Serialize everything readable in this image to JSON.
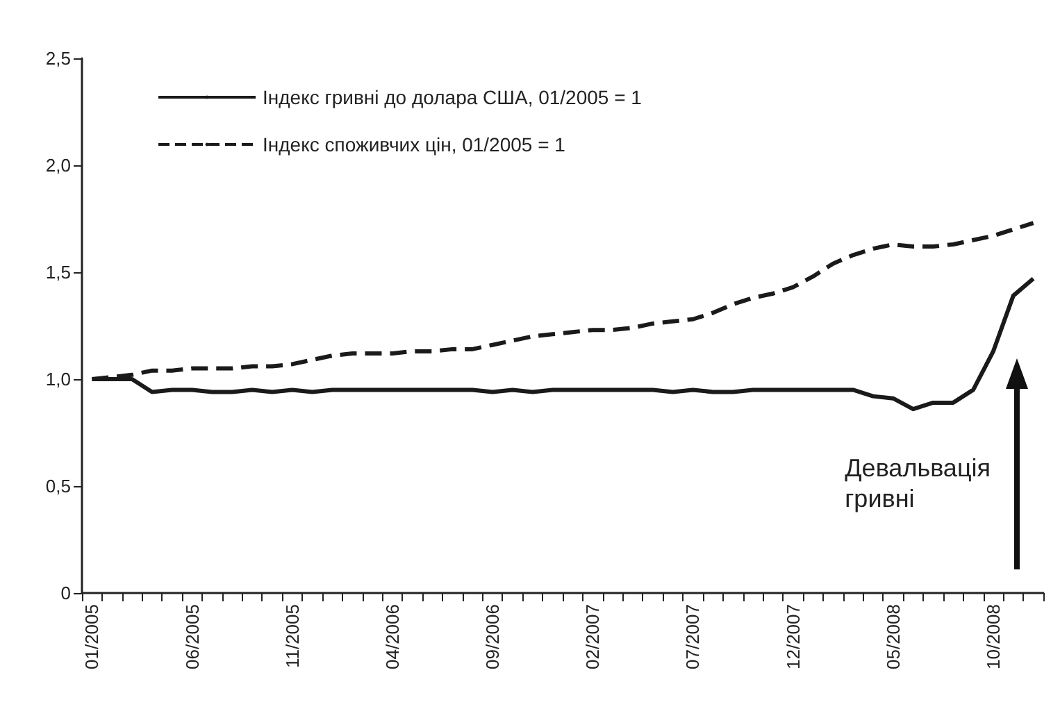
{
  "chart_data": {
    "type": "line",
    "categories": [
      "01/2005",
      null,
      null,
      null,
      null,
      "06/2005",
      null,
      null,
      null,
      null,
      "11/2005",
      null,
      null,
      null,
      null,
      "04/2006",
      null,
      null,
      null,
      null,
      "09/2006",
      null,
      null,
      null,
      null,
      "02/2007",
      null,
      null,
      null,
      null,
      "07/2007",
      null,
      null,
      null,
      null,
      "12/2007",
      null,
      null,
      null,
      null,
      "05/2008",
      null,
      null,
      null,
      null,
      "10/2008",
      null,
      null
    ],
    "series": [
      {
        "name": "Індекс гривні до долара США, 01/2005 = 1",
        "color": "#1a1a1a",
        "line_style": "solid",
        "values": [
          1.0,
          1.0,
          1.0,
          0.94,
          0.95,
          0.95,
          0.94,
          0.94,
          0.95,
          0.94,
          0.95,
          0.94,
          0.95,
          0.95,
          0.95,
          0.95,
          0.95,
          0.95,
          0.95,
          0.95,
          0.94,
          0.95,
          0.94,
          0.95,
          0.95,
          0.95,
          0.95,
          0.95,
          0.95,
          0.94,
          0.95,
          0.94,
          0.94,
          0.95,
          0.95,
          0.95,
          0.95,
          0.95,
          0.95,
          0.92,
          0.91,
          0.86,
          0.89,
          0.89,
          0.95,
          1.13,
          1.39,
          1.47
        ]
      },
      {
        "name": "Індекс споживчих цін, 01/2005 = 1",
        "color": "#1a1a1a",
        "line_style": "dashed",
        "values": [
          1.0,
          1.01,
          1.02,
          1.04,
          1.04,
          1.05,
          1.05,
          1.05,
          1.06,
          1.06,
          1.07,
          1.09,
          1.11,
          1.12,
          1.12,
          1.12,
          1.13,
          1.13,
          1.14,
          1.14,
          1.16,
          1.18,
          1.2,
          1.21,
          1.22,
          1.23,
          1.23,
          1.24,
          1.26,
          1.27,
          1.28,
          1.31,
          1.35,
          1.38,
          1.4,
          1.43,
          1.48,
          1.54,
          1.58,
          1.61,
          1.63,
          1.62,
          1.62,
          1.63,
          1.65,
          1.67,
          1.7,
          1.73
        ]
      }
    ],
    "ylim": [
      0,
      2.5
    ],
    "yticks": [
      0,
      {
        "value": 0.5,
        "label": "0,5"
      },
      {
        "value": 1,
        "label": "1,0"
      },
      {
        "value": 1.5,
        "label": "1,5"
      },
      {
        "value": 2,
        "label": "2,0"
      },
      {
        "value": 2.5,
        "label": "2,5"
      }
    ],
    "grid": false,
    "legend": "top left",
    "marker": "none",
    "annotations": [
      "Девальвація\nгривні"
    ]
  }
}
